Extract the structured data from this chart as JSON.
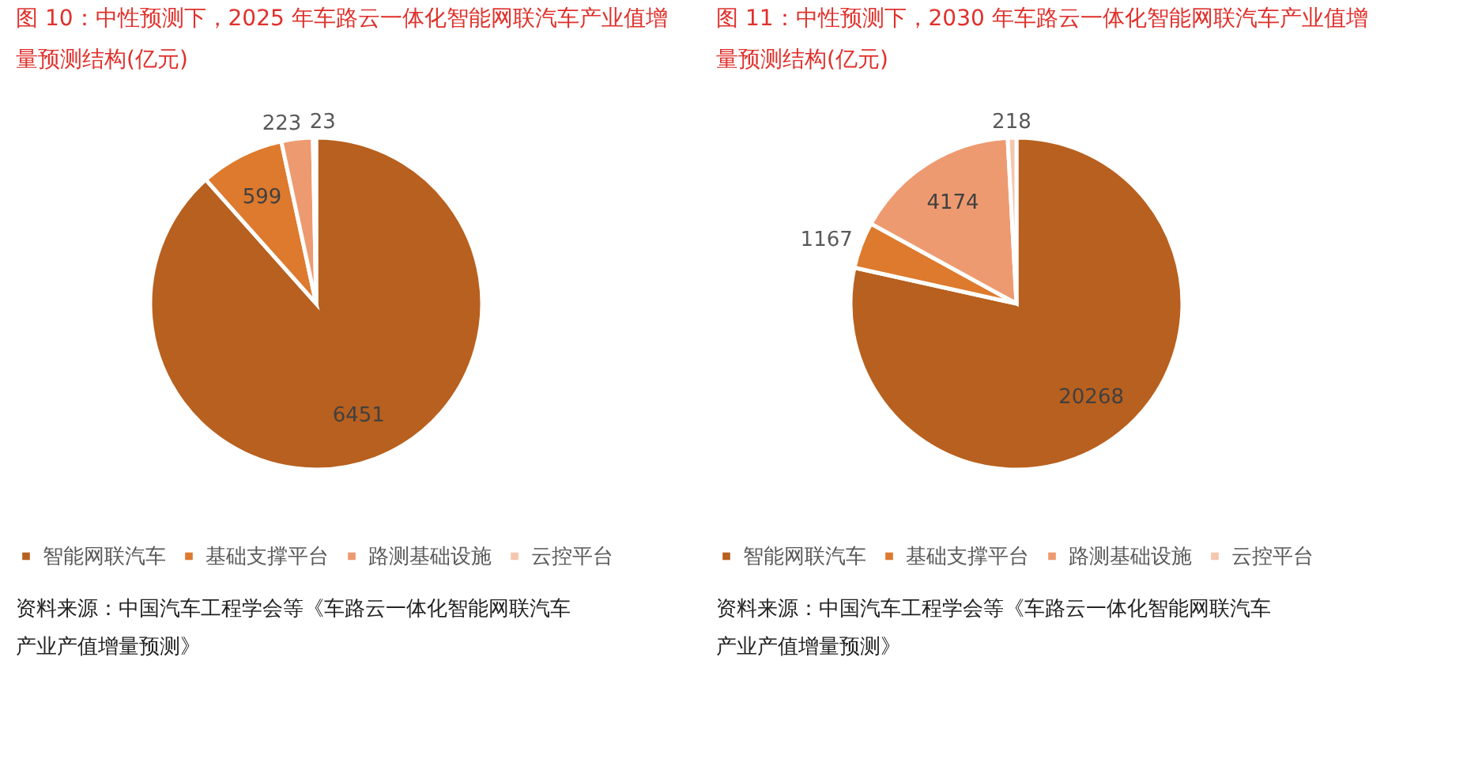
{
  "chart_data": [
    {
      "type": "pie",
      "title": "图 10：中性预测下，2025 年车路云一体化智能网联汽车产业值增量预测结构(亿元)",
      "categories": [
        "智能网联汽车",
        "基础支撑平台",
        "路测基础设施",
        "云控平台"
      ],
      "values": [
        6451,
        599,
        223,
        23
      ],
      "colors": [
        "#b8601f",
        "#dd7a2e",
        "#ee9a70",
        "#f5c6ae"
      ],
      "data_labels": true,
      "legend": "bottom",
      "annotations": [
        "资料来源：中国汽车工程学会等《车路云一体化智能网联汽车产业产值增量预测》"
      ]
    },
    {
      "type": "pie",
      "title": "图 11：中性预测下，2030 年车路云一体化智能网联汽车产业值增量预测结构(亿元)",
      "categories": [
        "智能网联汽车",
        "基础支撑平台",
        "路测基础设施",
        "云控平台"
      ],
      "values": [
        20268,
        1167,
        4174,
        218
      ],
      "colors": [
        "#b8601f",
        "#dd7a2e",
        "#ee9a70",
        "#f5c6ae"
      ],
      "data_labels": true,
      "legend": "bottom",
      "annotations": [
        "资料来源：中国汽车工程学会等《车路云一体化智能网联汽车产业产值增量预测》"
      ]
    }
  ]
}
